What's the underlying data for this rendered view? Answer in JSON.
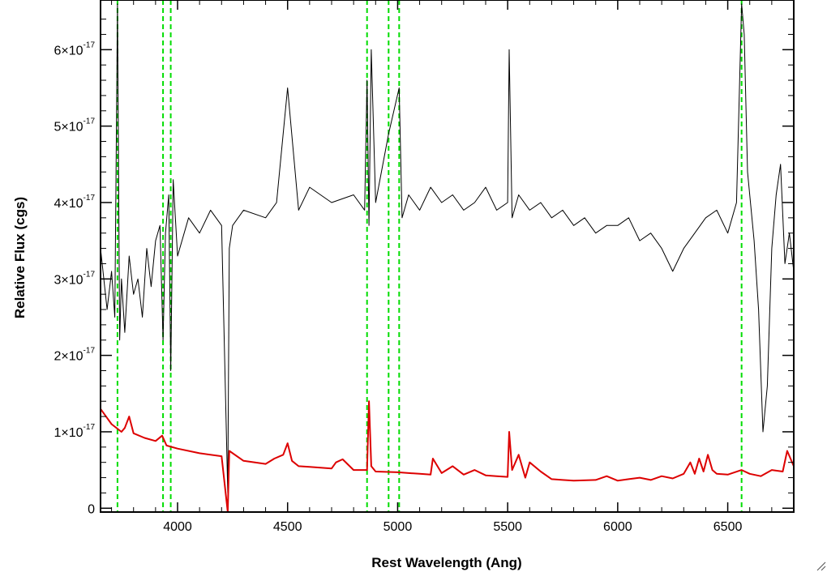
{
  "chart_data": {
    "type": "line",
    "title": "",
    "xlabel": "Rest Wavelength (Ang)",
    "ylabel": "Relative Flux (cgs)",
    "xlim": [
      3650,
      6800
    ],
    "ylim": [
      -5e-19,
      6.65e-17
    ],
    "x_ticks": [
      4000,
      4500,
      5000,
      5500,
      6000,
      6500
    ],
    "x_tick_labels": [
      "4000",
      "4500",
      "5000",
      "5500",
      "6000",
      "6500"
    ],
    "y_ticks": [
      0,
      1e-17,
      2e-17,
      3e-17,
      4e-17,
      5e-17,
      6e-17
    ],
    "y_tick_labels": [
      {
        "mantissa": "0",
        "exp": ""
      },
      {
        "mantissa": "1×10",
        "exp": "-17"
      },
      {
        "mantissa": "2×10",
        "exp": "-17"
      },
      {
        "mantissa": "3×10",
        "exp": "-17"
      },
      {
        "mantissa": "4×10",
        "exp": "-17"
      },
      {
        "mantissa": "5×10",
        "exp": "-17"
      },
      {
        "mantissa": "6×10",
        "exp": "-17"
      }
    ],
    "series": [
      {
        "color": "#000000",
        "x": [
          3650,
          3680,
          3700,
          3715,
          3727,
          3737,
          3745,
          3760,
          3780,
          3800,
          3820,
          3840,
          3860,
          3880,
          3900,
          3920,
          3934,
          3945,
          3960,
          3969,
          3980,
          4000,
          4050,
          4100,
          4150,
          4200,
          4228,
          4235,
          4250,
          4300,
          4400,
          4450,
          4500,
          4550,
          4600,
          4700,
          4800,
          4850,
          4861,
          4870,
          4880,
          4900,
          4959,
          5007,
          5020,
          5050,
          5100,
          5150,
          5200,
          5250,
          5300,
          5350,
          5400,
          5450,
          5500,
          5507,
          5520,
          5550,
          5600,
          5650,
          5700,
          5750,
          5800,
          5850,
          5900,
          5950,
          6000,
          6050,
          6100,
          6150,
          6200,
          6250,
          6300,
          6350,
          6400,
          6450,
          6500,
          6540,
          6563,
          6575,
          6590,
          6620,
          6640,
          6660,
          6680,
          6700,
          6720,
          6740,
          6760,
          6780,
          6800
        ],
        "values": [
          3.4e-17,
          2.6e-17,
          3.1e-17,
          2.5e-17,
          6.6e-17,
          2.2e-17,
          3e-17,
          2.3e-17,
          3.3e-17,
          2.8e-17,
          3e-17,
          2.5e-17,
          3.4e-17,
          2.9e-17,
          3.5e-17,
          3.7e-17,
          2.2e-17,
          3.6e-17,
          4.1e-17,
          1.8e-17,
          4.3e-17,
          3.3e-17,
          3.8e-17,
          3.6e-17,
          3.9e-17,
          3.7e-17,
          2e-18,
          3.4e-17,
          3.7e-17,
          3.9e-17,
          3.8e-17,
          4e-17,
          5.5e-17,
          3.9e-17,
          4.2e-17,
          4e-17,
          4.1e-17,
          3.9e-17,
          5.6e-17,
          3.7e-17,
          6e-17,
          4e-17,
          4.9e-17,
          5.5e-17,
          3.8e-17,
          4.1e-17,
          3.9e-17,
          4.2e-17,
          4e-17,
          4.1e-17,
          3.9e-17,
          4e-17,
          4.2e-17,
          3.9e-17,
          4e-17,
          6e-17,
          3.8e-17,
          4.1e-17,
          3.9e-17,
          4e-17,
          3.8e-17,
          3.9e-17,
          3.7e-17,
          3.8e-17,
          3.6e-17,
          3.7e-17,
          3.7e-17,
          3.8e-17,
          3.5e-17,
          3.6e-17,
          3.4e-17,
          3.1e-17,
          3.4e-17,
          3.6e-17,
          3.8e-17,
          3.9e-17,
          3.6e-17,
          4e-17,
          6.6e-17,
          6.2e-17,
          4.4e-17,
          3.5e-17,
          2.6e-17,
          1e-17,
          1.6e-17,
          3.4e-17,
          4.1e-17,
          4.5e-17,
          3.2e-17,
          3.6e-17,
          3.1e-17
        ]
      },
      {
        "color": "#dd0000",
        "x": [
          3650,
          3700,
          3745,
          3760,
          3780,
          3800,
          3850,
          3900,
          3930,
          3950,
          4000,
          4100,
          4200,
          4228,
          4235,
          4300,
          4400,
          4440,
          4480,
          4500,
          4520,
          4550,
          4600,
          4700,
          4720,
          4750,
          4800,
          4861,
          4870,
          4880,
          4900,
          5000,
          5050,
          5100,
          5150,
          5160,
          5200,
          5250,
          5300,
          5350,
          5400,
          5450,
          5500,
          5507,
          5520,
          5550,
          5580,
          5600,
          5650,
          5700,
          5750,
          5800,
          5900,
          5950,
          6000,
          6050,
          6100,
          6150,
          6200,
          6250,
          6300,
          6330,
          6350,
          6370,
          6390,
          6410,
          6430,
          6450,
          6500,
          6563,
          6600,
          6650,
          6700,
          6750,
          6770,
          6800
        ],
        "values": [
          1.3e-17,
          1.1e-17,
          1e-17,
          1.05e-17,
          1.2e-17,
          9.8e-18,
          9.2e-18,
          8.8e-18,
          9.5e-18,
          8.2e-18,
          7.8e-18,
          7.2e-18,
          6.8e-18,
          -5e-19,
          7.5e-18,
          6.2e-18,
          5.8e-18,
          6.5e-18,
          7e-18,
          8.5e-18,
          6.2e-18,
          5.5e-18,
          5.4e-18,
          5.2e-18,
          6e-18,
          6.4e-18,
          5e-18,
          5e-18,
          1.4e-17,
          5.5e-18,
          4.8e-18,
          4.7e-18,
          4.6e-18,
          4.5e-18,
          4.4e-18,
          6.5e-18,
          4.6e-18,
          5.5e-18,
          4.4e-18,
          5e-18,
          4.3e-18,
          4.2e-18,
          4.1e-18,
          1e-17,
          5e-18,
          7e-18,
          4e-18,
          6e-18,
          4.8e-18,
          3.8e-18,
          3.7e-18,
          3.6e-18,
          3.7e-18,
          4.2e-18,
          3.6e-18,
          3.8e-18,
          4e-18,
          3.7e-18,
          4.2e-18,
          3.9e-18,
          4.5e-18,
          6e-18,
          4.5e-18,
          6.5e-18,
          4.8e-18,
          7e-18,
          5e-18,
          4.5e-18,
          4.4e-18,
          5e-18,
          4.5e-18,
          4.2e-18,
          5e-18,
          4.8e-18,
          7.5e-18,
          5.5e-18
        ]
      }
    ],
    "vlines": {
      "color": "#00dd00",
      "style": "dashed",
      "x": [
        3727,
        3934,
        3969,
        4861,
        4959,
        5007,
        6563
      ]
    },
    "grid": false,
    "legend": "none"
  }
}
